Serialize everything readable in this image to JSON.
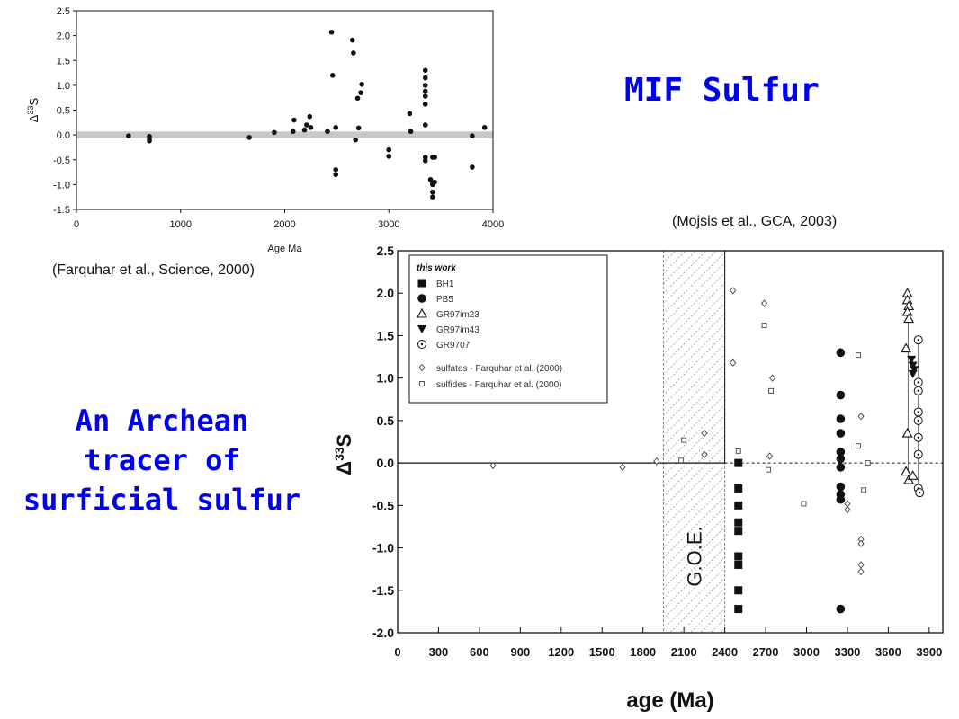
{
  "slide": {
    "title": "MIF Sulfur",
    "subtitle_lines": [
      "An Archean",
      "tracer of",
      "surficial sulfur"
    ],
    "citation_top": "(Farquhar et al., Science, 2000)",
    "citation_bottom": "(Mojsis et al., GCA, 2003)"
  },
  "colors": {
    "title": "#0000ee",
    "band": "#c8c8c8",
    "ink": "#111111",
    "hatch": "#555555"
  },
  "chart_data": [
    {
      "type": "scatter",
      "title": "",
      "xlabel": "Age Ma",
      "ylabel_base": "Δ",
      "ylabel_sup": "33",
      "ylabel_tail": "S",
      "xlim": [
        0,
        4000
      ],
      "ylim": [
        -1.5,
        2.5
      ],
      "xticks": [
        0,
        1000,
        2000,
        3000,
        4000
      ],
      "yticks": [
        -1.5,
        -1.0,
        -0.5,
        0.0,
        0.5,
        1.0,
        1.5,
        2.0,
        2.5
      ],
      "ytick_labels": [
        "-1.5",
        "-1.0",
        "-0.5",
        "0.0",
        "0.5",
        "1.0",
        "1.5",
        "2.0",
        "2.5"
      ],
      "zero_band": [
        -0.07,
        0.07
      ],
      "grid": false,
      "points": [
        [
          500,
          -0.02
        ],
        [
          700,
          -0.03
        ],
        [
          700,
          -0.08
        ],
        [
          700,
          -0.12
        ],
        [
          1660,
          -0.05
        ],
        [
          1900,
          0.05
        ],
        [
          2080,
          0.07
        ],
        [
          2090,
          0.3
        ],
        [
          2190,
          0.1
        ],
        [
          2210,
          0.2
        ],
        [
          2240,
          0.37
        ],
        [
          2250,
          0.15
        ],
        [
          2410,
          0.07
        ],
        [
          2450,
          2.07
        ],
        [
          2460,
          1.2
        ],
        [
          2490,
          0.15
        ],
        [
          2490,
          -0.7
        ],
        [
          2490,
          -0.8
        ],
        [
          2650,
          1.91
        ],
        [
          2660,
          1.65
        ],
        [
          2680,
          -0.1
        ],
        [
          2700,
          0.74
        ],
        [
          2710,
          0.14
        ],
        [
          2730,
          0.85
        ],
        [
          2740,
          1.02
        ],
        [
          3000,
          -0.3
        ],
        [
          3000,
          -0.43
        ],
        [
          3200,
          0.43
        ],
        [
          3210,
          0.07
        ],
        [
          3350,
          1.3
        ],
        [
          3350,
          1.15
        ],
        [
          3350,
          1.0
        ],
        [
          3350,
          0.88
        ],
        [
          3350,
          0.78
        ],
        [
          3350,
          0.62
        ],
        [
          3350,
          0.2
        ],
        [
          3350,
          -0.45
        ],
        [
          3350,
          -0.52
        ],
        [
          3400,
          -0.9
        ],
        [
          3420,
          -0.45
        ],
        [
          3420,
          -0.98
        ],
        [
          3420,
          -1.0
        ],
        [
          3420,
          -1.15
        ],
        [
          3420,
          -1.25
        ],
        [
          3440,
          -0.45
        ],
        [
          3440,
          -0.95
        ],
        [
          3800,
          -0.02
        ],
        [
          3800,
          -0.65
        ],
        [
          3920,
          0.15
        ]
      ]
    },
    {
      "type": "scatter",
      "title": "",
      "xlabel": "age (Ma)",
      "ylabel_base": "Δ",
      "ylabel_sup": "33",
      "ylabel_tail": "S",
      "xlim": [
        0,
        4000
      ],
      "ylim": [
        -2.0,
        2.5
      ],
      "xticks": [
        0,
        300,
        600,
        900,
        1200,
        1500,
        1800,
        2100,
        2400,
        2700,
        3000,
        3300,
        3600,
        3900
      ],
      "yticks": [
        -2.0,
        -1.5,
        -1.0,
        -0.5,
        0.0,
        0.5,
        1.0,
        1.5,
        2.0,
        2.5
      ],
      "ytick_labels": [
        "-2.0",
        "-1.5",
        "-1.0",
        "-0.5",
        "0.0",
        "0.5",
        "1.0",
        "1.5",
        "2.0",
        "2.5"
      ],
      "band": {
        "x": [
          1950,
          2400
        ],
        "label": "G.O.E."
      },
      "legend": {
        "position": "top-left",
        "heading": "this work",
        "entries": [
          {
            "label": "BH1",
            "marker": "filled-square"
          },
          {
            "label": "PB5",
            "marker": "filled-circle"
          },
          {
            "label": "GR97im23",
            "marker": "open-triangle"
          },
          {
            "label": "GR97im43",
            "marker": "filled-triangle-down"
          },
          {
            "label": "GR9707",
            "marker": "circle-dot"
          },
          {
            "label": "sulfates - Farquhar et al. (2000)",
            "marker": "open-diamond"
          },
          {
            "label": "sulfides - Farquhar et al. (2000)",
            "marker": "open-square-small"
          }
        ]
      },
      "series": [
        {
          "name": "BH1",
          "marker": "filled-square",
          "points": [
            [
              2500,
              0.0
            ],
            [
              2500,
              -0.3
            ],
            [
              2500,
              -0.5
            ],
            [
              2500,
              -0.7
            ],
            [
              2500,
              -0.8
            ],
            [
              2500,
              -1.1
            ],
            [
              2500,
              -1.2
            ],
            [
              2500,
              -1.5
            ],
            [
              2500,
              -1.72
            ]
          ]
        },
        {
          "name": "PB5",
          "marker": "filled-circle",
          "points": [
            [
              3250,
              1.3
            ],
            [
              3250,
              0.8
            ],
            [
              3250,
              0.52
            ],
            [
              3250,
              0.35
            ],
            [
              3250,
              0.13
            ],
            [
              3250,
              0.05
            ],
            [
              3250,
              -0.05
            ],
            [
              3250,
              -0.28
            ],
            [
              3250,
              -0.37
            ],
            [
              3250,
              -0.43
            ],
            [
              3250,
              -1.72
            ]
          ]
        },
        {
          "name": "GR97im23",
          "marker": "open-triangle",
          "points": [
            [
              3740,
              2.0
            ],
            [
              3740,
              1.92
            ],
            [
              3750,
              1.85
            ],
            [
              3740,
              1.78
            ],
            [
              3750,
              1.7
            ],
            [
              3730,
              1.35
            ],
            [
              3740,
              0.35
            ],
            [
              3730,
              -0.1
            ],
            [
              3750,
              -0.2
            ],
            [
              3780,
              -0.15
            ]
          ]
        },
        {
          "name": "GR97im43",
          "marker": "filled-triangle-down",
          "points": [
            [
              3770,
              1.22
            ],
            [
              3780,
              1.15
            ],
            [
              3790,
              1.1
            ],
            [
              3780,
              1.05
            ]
          ]
        },
        {
          "name": "GR9707",
          "marker": "circle-dot",
          "points": [
            [
              3820,
              1.45
            ],
            [
              3820,
              0.95
            ],
            [
              3820,
              0.85
            ],
            [
              3820,
              0.6
            ],
            [
              3820,
              0.5
            ],
            [
              3820,
              0.3
            ],
            [
              3820,
              0.1
            ],
            [
              3820,
              -0.3
            ],
            [
              3830,
              -0.35
            ]
          ]
        },
        {
          "name": "sulfates - Farquhar et al. (2000)",
          "marker": "open-diamond",
          "points": [
            [
              700,
              -0.03
            ],
            [
              1650,
              -0.05
            ],
            [
              1900,
              0.02
            ],
            [
              2250,
              0.35
            ],
            [
              2250,
              0.1
            ],
            [
              2460,
              2.03
            ],
            [
              2460,
              1.18
            ],
            [
              2690,
              1.88
            ],
            [
              2750,
              1.0
            ],
            [
              2730,
              0.08
            ],
            [
              3300,
              -0.48
            ],
            [
              3300,
              -0.55
            ],
            [
              3400,
              0.55
            ],
            [
              3400,
              -0.9
            ],
            [
              3400,
              -0.95
            ],
            [
              3400,
              -1.2
            ],
            [
              3400,
              -1.28
            ]
          ]
        },
        {
          "name": "sulfides - Farquhar et al. (2000)",
          "marker": "open-square-small",
          "points": [
            [
              2100,
              0.27
            ],
            [
              2080,
              0.03
            ],
            [
              2500,
              0.14
            ],
            [
              2690,
              1.62
            ],
            [
              2740,
              0.85
            ],
            [
              2720,
              -0.08
            ],
            [
              2980,
              -0.48
            ],
            [
              3380,
              1.27
            ],
            [
              3380,
              0.2
            ],
            [
              3420,
              -0.32
            ],
            [
              3450,
              0.0
            ]
          ]
        }
      ]
    }
  ]
}
